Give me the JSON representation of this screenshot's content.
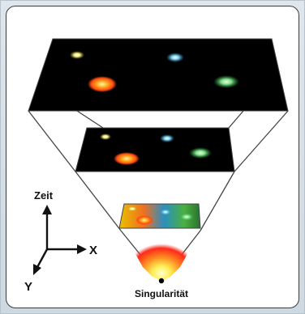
{
  "axes": {
    "time_label": "Zeit",
    "x_label": "X",
    "y_label": "Y"
  },
  "origin_label": "Singularität",
  "colors": {
    "slab": "#000000",
    "outline": "#444444",
    "galaxy_yellow": "#f4f08a",
    "galaxy_cyan": "#7fd4f0",
    "galaxy_orange": "#ff8a1a",
    "galaxy_green": "#7fe08a",
    "flash_red": "#ff2a1a",
    "flash_yellow": "#ffee55"
  }
}
